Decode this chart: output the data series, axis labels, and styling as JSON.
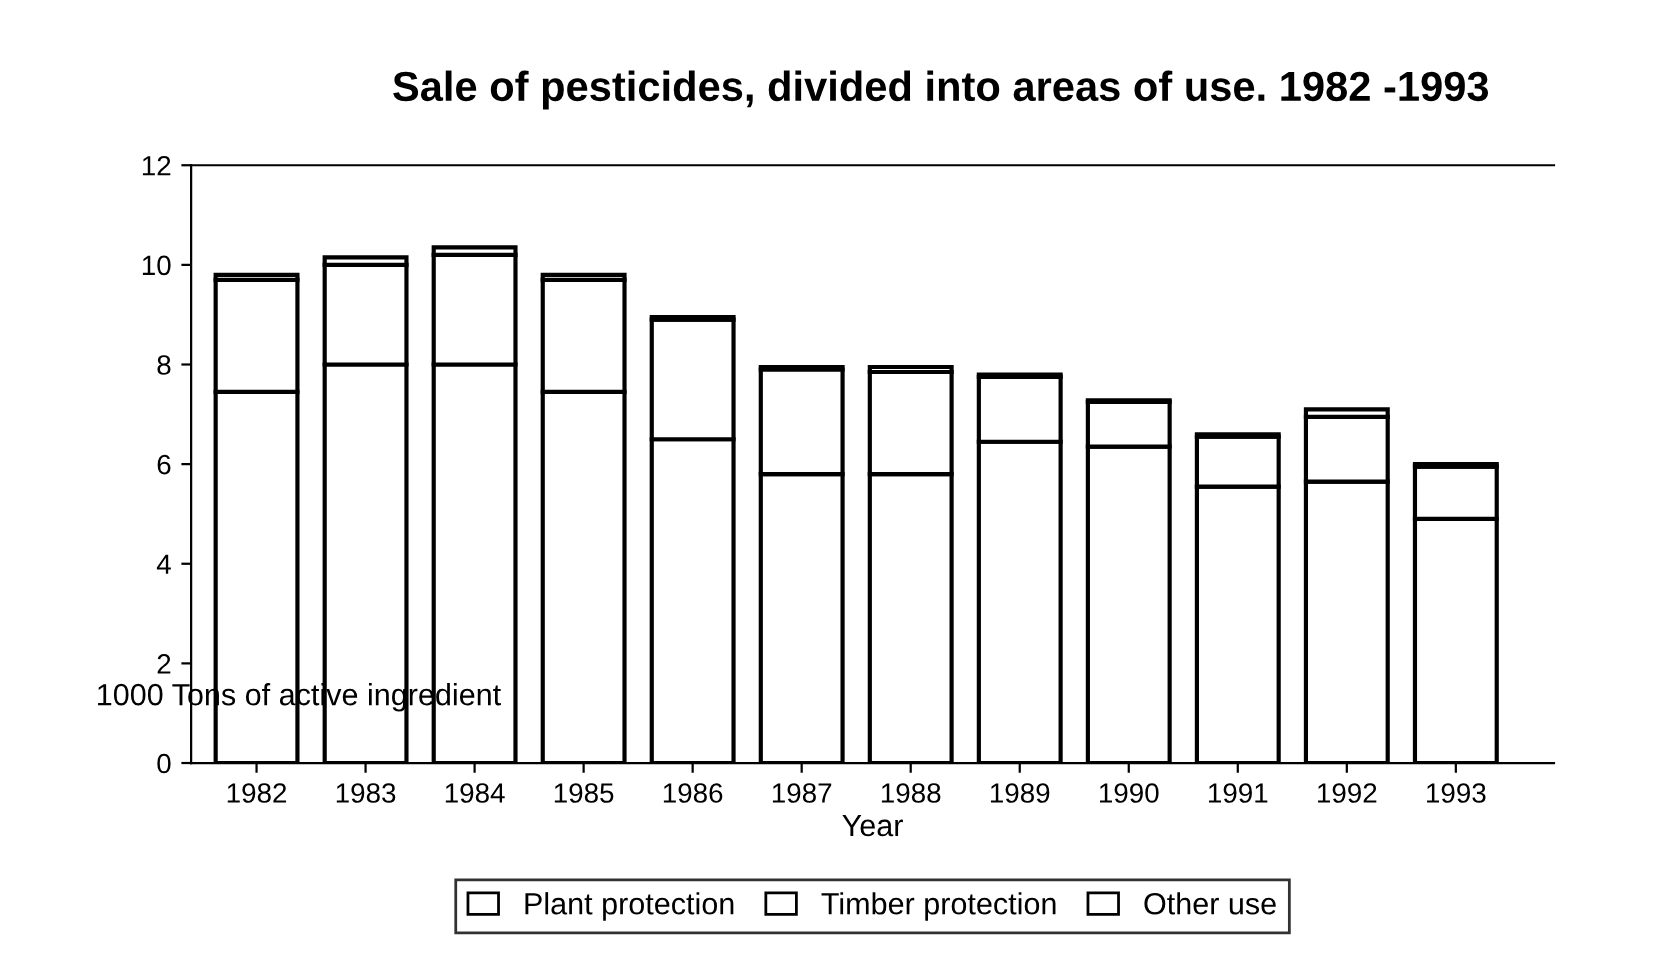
{
  "chart_data": {
    "type": "bar",
    "stacked": true,
    "title": "Sale of pesticides, divided into areas of use. 1982 -1993",
    "xlabel": "Year",
    "ylabel": "1000 Tons of active ingredient",
    "categories": [
      "1982",
      "1983",
      "1984",
      "1985",
      "1986",
      "1987",
      "1988",
      "1989",
      "1990",
      "1991",
      "1992",
      "1993"
    ],
    "series": [
      {
        "name": "Plant protection",
        "color": "#ffffff",
        "values": [
          7.45,
          8.0,
          8.0,
          7.45,
          6.5,
          5.8,
          5.8,
          6.45,
          6.35,
          5.55,
          5.65,
          4.9
        ]
      },
      {
        "name": "Timber protection",
        "color": "#ffffff",
        "values": [
          2.25,
          2.0,
          2.2,
          2.25,
          2.4,
          2.1,
          2.05,
          1.3,
          0.9,
          1.0,
          1.3,
          1.05
        ]
      },
      {
        "name": "Other use",
        "color": "#ffffff",
        "values": [
          0.1,
          0.15,
          0.15,
          0.1,
          0.05,
          0.05,
          0.1,
          0.05,
          0.03,
          0.05,
          0.15,
          0.05
        ]
      }
    ],
    "ylim": [
      0,
      12
    ],
    "yticks": [
      0,
      2,
      4,
      6,
      8,
      10,
      12
    ],
    "grid": false,
    "legend": "bottom"
  }
}
